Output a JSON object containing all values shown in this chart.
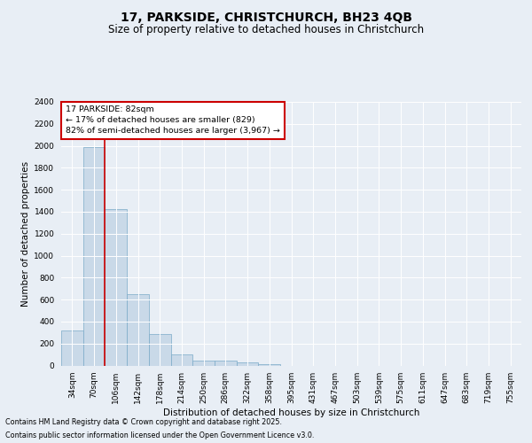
{
  "title1": "17, PARKSIDE, CHRISTCHURCH, BH23 4QB",
  "title2": "Size of property relative to detached houses in Christchurch",
  "xlabel": "Distribution of detached houses by size in Christchurch",
  "ylabel": "Number of detached properties",
  "categories": [
    "34sqm",
    "70sqm",
    "106sqm",
    "142sqm",
    "178sqm",
    "214sqm",
    "250sqm",
    "286sqm",
    "322sqm",
    "358sqm",
    "395sqm",
    "431sqm",
    "467sqm",
    "503sqm",
    "539sqm",
    "575sqm",
    "611sqm",
    "647sqm",
    "683sqm",
    "719sqm",
    "755sqm"
  ],
  "values": [
    320,
    1990,
    1420,
    650,
    285,
    100,
    45,
    45,
    30,
    15,
    0,
    0,
    0,
    0,
    0,
    0,
    0,
    0,
    0,
    0,
    0
  ],
  "bar_color": "#c9d9e8",
  "bar_edge_color": "#7aaac8",
  "vline_x": 1.5,
  "vline_color": "#cc0000",
  "annotation_text": "17 PARKSIDE: 82sqm\n← 17% of detached houses are smaller (829)\n82% of semi-detached houses are larger (3,967) →",
  "annotation_box_color": "#cc0000",
  "annotation_facecolor": "white",
  "ylim": [
    0,
    2400
  ],
  "yticks": [
    0,
    200,
    400,
    600,
    800,
    1000,
    1200,
    1400,
    1600,
    1800,
    2000,
    2200,
    2400
  ],
  "footer1": "Contains HM Land Registry data © Crown copyright and database right 2025.",
  "footer2": "Contains public sector information licensed under the Open Government Licence v3.0.",
  "bg_color": "#e8eef5",
  "plot_bg_color": "#e8eef5",
  "grid_color": "white",
  "title1_fontsize": 10,
  "title2_fontsize": 8.5,
  "axis_fontsize": 7.5,
  "tick_fontsize": 6.5,
  "footer_fontsize": 5.8,
  "ylabel_fontsize": 7.5
}
